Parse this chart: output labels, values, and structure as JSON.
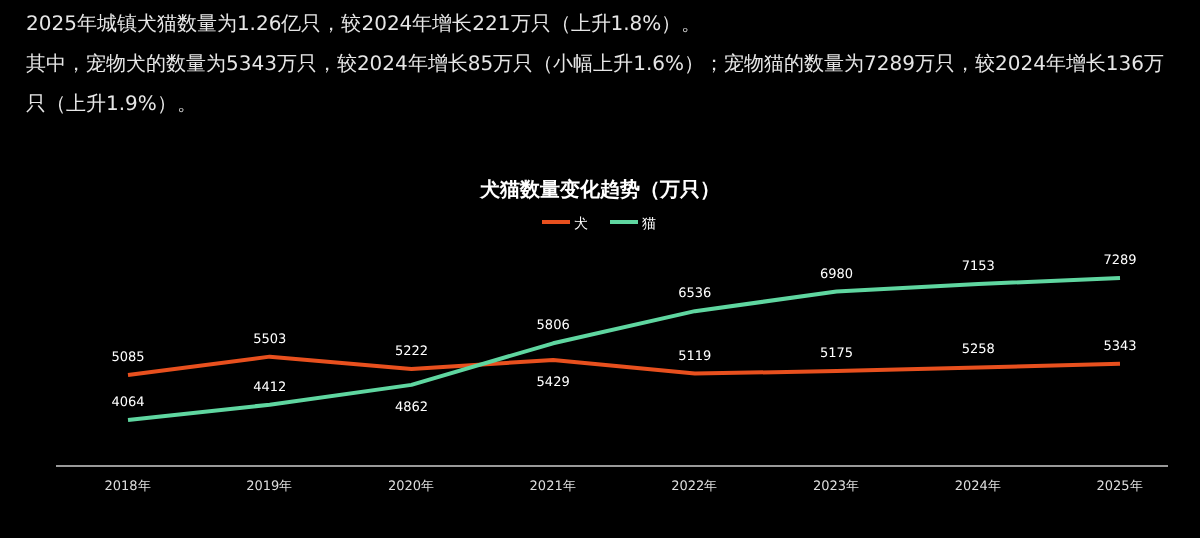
{
  "chart_data": {
    "type": "line",
    "subtitle": "2025年城镇犬猫数量为1.26亿只，较2024年增长221万只（上升1.8%）。",
    "annotations": [
      "其中，宠物犬的数量为5343万只，较2024年增长85万只（小幅上升1.6%）；宠物猫的数量为7289万只，较2024年增长136万只（上升1.9%）。"
    ],
    "title": "犬猫数量变化趋势（万只）",
    "categories": [
      "2018年",
      "2019年",
      "2020年",
      "2021年",
      "2022年",
      "2023年",
      "2024年",
      "2025年"
    ],
    "series": [
      {
        "name": "犬",
        "color": "#e8501e",
        "values": [
          5085,
          5503,
          5222,
          5429,
          5119,
          5175,
          5258,
          5343
        ]
      },
      {
        "name": "猫",
        "color": "#5fd6a0",
        "values": [
          4064,
          4412,
          4862,
          5806,
          6536,
          6980,
          7153,
          7289
        ]
      }
    ],
    "data_labels": true,
    "legend": "top",
    "grid": false,
    "marker": "none",
    "line_style": "solid"
  }
}
